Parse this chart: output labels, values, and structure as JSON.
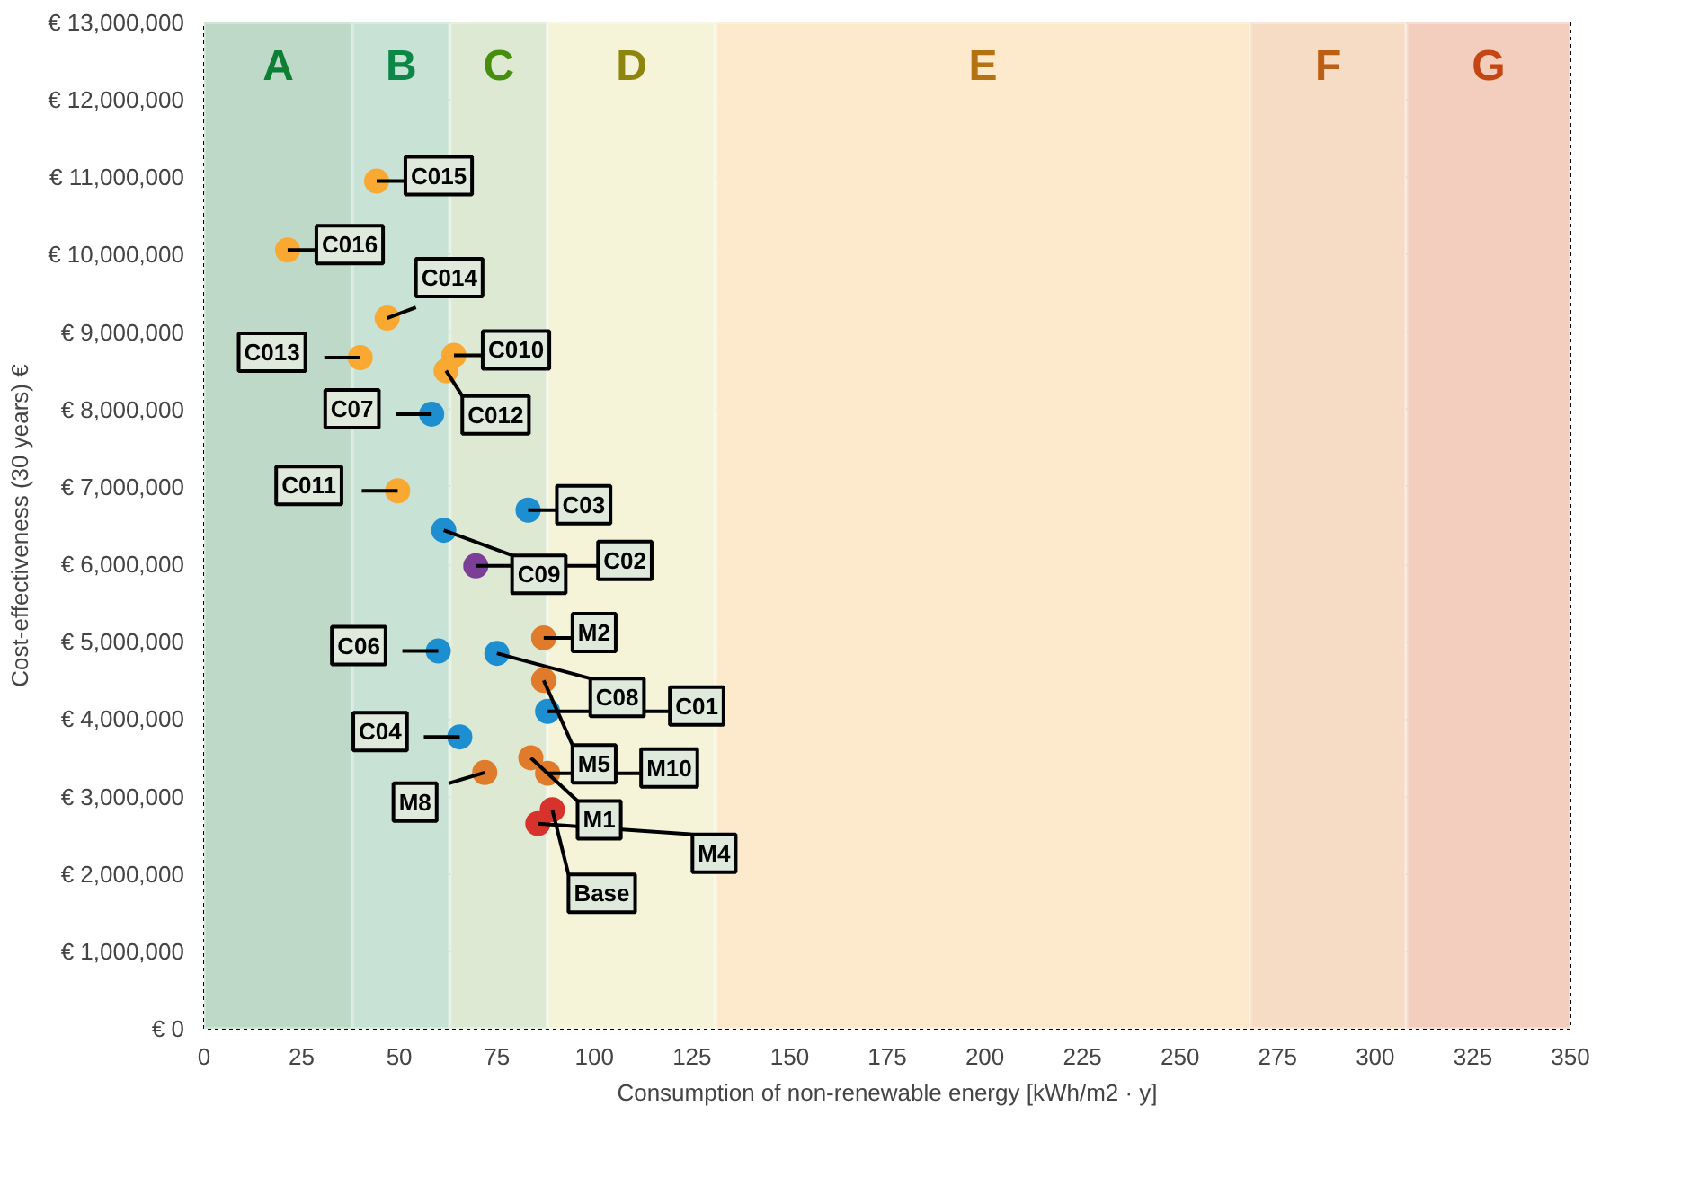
{
  "chart_data": {
    "type": "scatter",
    "xlabel": "Consumption of non-renewable energy [kWh/m2 · y]",
    "ylabel": "Cost-effectiveness (30 years) €",
    "xlim": [
      0,
      350
    ],
    "xticks": [
      0,
      25,
      50,
      75,
      100,
      125,
      150,
      175,
      200,
      225,
      250,
      275,
      300,
      325,
      350
    ],
    "ylim": [
      0,
      13000000
    ],
    "yticks": [
      {
        "value": 0,
        "label": "€ 0"
      },
      {
        "value": 1000000,
        "label": "€ 1,000,000"
      },
      {
        "value": 2000000,
        "label": "€ 2,000,000"
      },
      {
        "value": 3000000,
        "label": "€ 3,000,000"
      },
      {
        "value": 4000000,
        "label": "€ 4,000,000"
      },
      {
        "value": 5000000,
        "label": "€ 5,000,000"
      },
      {
        "value": 6000000,
        "label": "€ 6,000,000"
      },
      {
        "value": 7000000,
        "label": "€ 7,000,000"
      },
      {
        "value": 8000000,
        "label": "€ 8,000,000"
      },
      {
        "value": 9000000,
        "label": "€ 9,000,000"
      },
      {
        "value": 10000000,
        "label": "€ 10,000,000"
      },
      {
        "value": 11000000,
        "label": "€ 11,000,000"
      },
      {
        "value": 12000000,
        "label": "€ 12,000,000"
      },
      {
        "value": 13000000,
        "label": "€ 13,000,000"
      }
    ],
    "grid": true,
    "marker": "circle",
    "bands": [
      {
        "axis": "x",
        "from": 0,
        "to": 38,
        "label": "A",
        "color": "#bfd9c8"
      },
      {
        "axis": "x",
        "from": 38,
        "to": 63,
        "label": "B",
        "color": "#c8e3d5"
      },
      {
        "axis": "x",
        "from": 63,
        "to": 88,
        "label": "C",
        "color": "#dde9d3"
      },
      {
        "axis": "x",
        "from": 88,
        "to": 131,
        "label": "D",
        "color": "#f5f3d8"
      },
      {
        "axis": "x",
        "from": 131,
        "to": 268,
        "label": "E",
        "color": "#fde9cc"
      },
      {
        "axis": "x",
        "from": 268,
        "to": 308,
        "label": "F",
        "color": "#f6dbc5"
      },
      {
        "axis": "x",
        "from": 308,
        "to": 350,
        "label": "G",
        "color": "#f3cebf"
      }
    ],
    "series": [
      {
        "x": [
          44.2,
          21.4,
          46.9,
          64,
          40,
          62,
          58.3,
          83,
          49.6,
          61.4,
          69.6,
          87,
          60,
          75,
          87,
          88,
          65.5,
          83.7,
          88,
          71.9,
          89.2,
          85.5
        ],
        "values": [
          10950000,
          10060000,
          9180000,
          8700000,
          8670000,
          8500000,
          7940000,
          6700000,
          6950000,
          6440000,
          5980000,
          5050000,
          4880000,
          4850000,
          4500000,
          4100000,
          3770000,
          3500000,
          3300000,
          3310000,
          2830000,
          2650000
        ],
        "colors": [
          "#f9a932",
          "#f9a932",
          "#f9a932",
          "#f9a932",
          "#f9a932",
          "#f9a932",
          "#1d8fd0",
          "#1d8fd0",
          "#f9a932",
          "#1d8fd0",
          "#7b3f98",
          "#e07b2c",
          "#1d8fd0",
          "#1d8fd0",
          "#e07b2c",
          "#1d8fd0",
          "#1d8fd0",
          "#e07b2c",
          "#e07b2c",
          "#e07b2c",
          "#d7322b",
          "#d7322b"
        ]
      }
    ],
    "annotations": [
      {
        "text": "C015",
        "x": 44.2,
        "y": 10950000
      },
      {
        "text": "C016",
        "x": 21.4,
        "y": 10060000
      },
      {
        "text": "C014",
        "x": 46.9,
        "y": 9180000
      },
      {
        "text": "C010",
        "x": 64,
        "y": 8700000
      },
      {
        "text": "C013",
        "x": 40,
        "y": 8670000
      },
      {
        "text": "C012",
        "x": 62,
        "y": 8500000
      },
      {
        "text": "C07",
        "x": 58.3,
        "y": 7940000
      },
      {
        "text": "C03",
        "x": 83,
        "y": 6700000
      },
      {
        "text": "C011",
        "x": 49.6,
        "y": 6950000
      },
      {
        "text": "C09",
        "x": 61.4,
        "y": 6440000
      },
      {
        "text": "C02",
        "x": 69.6,
        "y": 5980000
      },
      {
        "text": "M2",
        "x": 87,
        "y": 5050000
      },
      {
        "text": "C06",
        "x": 60,
        "y": 4880000
      },
      {
        "text": "C08",
        "x": 75,
        "y": 4850000
      },
      {
        "text": "M5",
        "x": 87,
        "y": 4500000
      },
      {
        "text": "C01",
        "x": 88,
        "y": 4100000
      },
      {
        "text": "C04",
        "x": 65.5,
        "y": 3770000
      },
      {
        "text": "M1",
        "x": 83.7,
        "y": 3500000
      },
      {
        "text": "M10",
        "x": 88,
        "y": 3300000
      },
      {
        "text": "M8",
        "x": 71.9,
        "y": 3310000
      },
      {
        "text": "Base",
        "x": 89.2,
        "y": 2830000
      },
      {
        "text": "M4",
        "x": 85.5,
        "y": 2650000
      }
    ]
  }
}
